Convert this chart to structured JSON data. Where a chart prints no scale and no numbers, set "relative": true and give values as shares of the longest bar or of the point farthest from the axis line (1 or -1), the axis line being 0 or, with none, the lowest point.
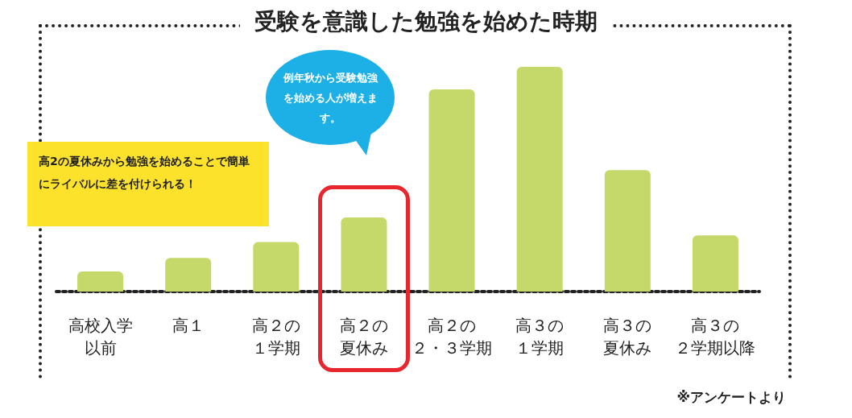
{
  "chart_data": {
    "type": "bar",
    "title": "受験を意識した勉強を始めた時期",
    "categories": [
      "高校入学以前",
      "高１",
      "高２の１学期",
      "高２の夏休み",
      "高２の２・３学期",
      "高３の１学期",
      "高３の夏休み",
      "高３の２学期以降"
    ],
    "values": [
      0.09,
      0.15,
      0.22,
      0.33,
      0.9,
      1,
      0.54,
      0.25
    ],
    "color": "#c5d96a",
    "relative": true,
    "annotations": [
      "高2の夏休みから勉強を始めることで簡単にライバルに差を付けられる！",
      "例年秋から受験勉強を始める人が増えます。",
      "※アンケートより"
    ]
  }
}
